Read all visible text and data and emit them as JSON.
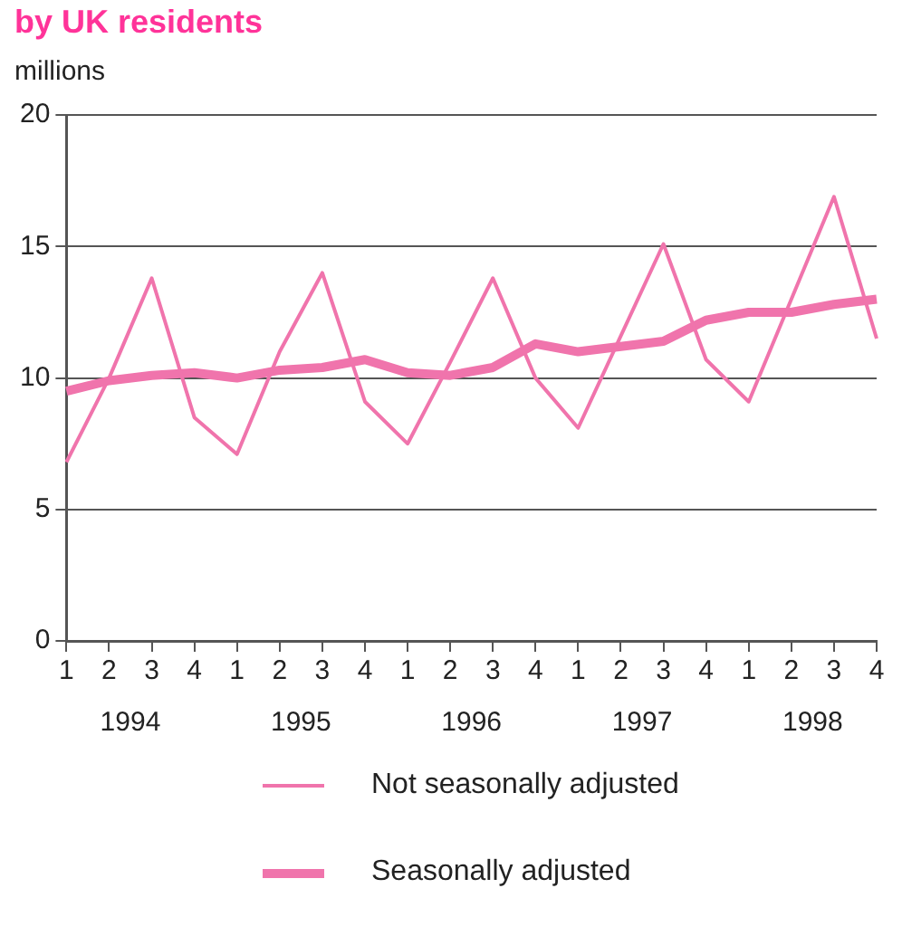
{
  "chart_data": {
    "type": "line",
    "title": "by UK residents",
    "ylabel": "millions",
    "categories": [
      "1",
      "2",
      "3",
      "4",
      "1",
      "2",
      "3",
      "4",
      "1",
      "2",
      "3",
      "4",
      "1",
      "2",
      "3",
      "4",
      "1",
      "2",
      "3",
      "4"
    ],
    "annotations": [
      "1994",
      "1995",
      "1996",
      "1997",
      "1998"
    ],
    "series": [
      {
        "name": "Not seasonally adjusted",
        "color": "#f074ac",
        "values": [
          6.8,
          10.0,
          13.8,
          8.5,
          7.1,
          11.0,
          14.0,
          9.1,
          7.5,
          10.6,
          13.8,
          10.0,
          8.1,
          11.6,
          15.1,
          10.7,
          9.1,
          13.0,
          16.9,
          11.5
        ]
      },
      {
        "name": "Seasonally adjusted",
        "color": "#f074ac",
        "values": [
          9.5,
          9.9,
          10.1,
          10.2,
          10.0,
          10.3,
          10.4,
          10.7,
          10.2,
          10.1,
          10.4,
          11.3,
          11.0,
          11.2,
          11.4,
          12.2,
          12.5,
          12.5,
          12.8,
          13.0
        ]
      }
    ],
    "ylim": [
      0,
      20
    ],
    "yticks": [
      0,
      5,
      10,
      15,
      20
    ],
    "grid": "y",
    "legend": "bottom",
    "marker": "none",
    "line_style": "solid"
  }
}
